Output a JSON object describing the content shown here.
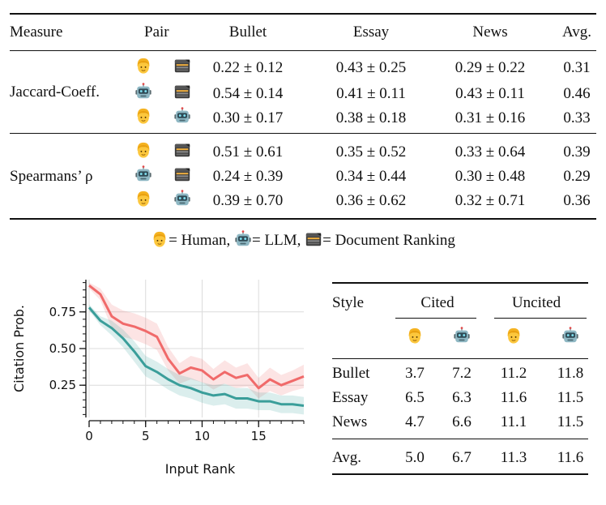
{
  "top_table": {
    "headers": {
      "measure": "Measure",
      "pair": "Pair",
      "bullet": "Bullet",
      "essay": "Essay",
      "news": "News",
      "avg": "Avg."
    },
    "groups": [
      {
        "label": "Jaccard-Coeff.",
        "rows": [
          {
            "pair": [
              "human",
              "doc"
            ],
            "bullet": "0.22 ± 0.12",
            "essay": "0.43 ± 0.25",
            "news": "0.29 ± 0.22",
            "avg": "0.31"
          },
          {
            "pair": [
              "llm",
              "doc"
            ],
            "bullet": "0.54 ± 0.14",
            "essay": "0.41 ± 0.11",
            "news": "0.43 ± 0.11",
            "avg": "0.46"
          },
          {
            "pair": [
              "human",
              "llm"
            ],
            "bullet": "0.30 ± 0.17",
            "essay": "0.38 ± 0.18",
            "news": "0.31 ± 0.16",
            "avg": "0.33"
          }
        ]
      },
      {
        "label": "Spearmans’ ρ",
        "rows": [
          {
            "pair": [
              "human",
              "doc"
            ],
            "bullet": "0.51 ± 0.61",
            "essay": "0.35 ± 0.52",
            "news": "0.33 ± 0.64",
            "avg": "0.39"
          },
          {
            "pair": [
              "llm",
              "doc"
            ],
            "bullet": "0.24 ± 0.39",
            "essay": "0.34 ± 0.44",
            "news": "0.30 ± 0.48",
            "avg": "0.29"
          },
          {
            "pair": [
              "human",
              "llm"
            ],
            "bullet": "0.39 ± 0.70",
            "essay": "0.36 ± 0.62",
            "news": "0.32 ± 0.71",
            "avg": "0.36"
          }
        ]
      }
    ]
  },
  "legend": {
    "human": "= Human,",
    "llm": "= LLM,",
    "doc": "= Document Ranking"
  },
  "chart_data": {
    "type": "line",
    "xlabel": "Input Rank",
    "ylabel": "Citation Prob.",
    "xlim": [
      0,
      19
    ],
    "ylim": [
      0.03,
      0.97
    ],
    "xticks": [
      0,
      5,
      10,
      15
    ],
    "yticks": [
      0.25,
      0.5,
      0.75
    ],
    "ytick_labels": [
      "0.25",
      "0.50",
      "0.75"
    ],
    "grid": true,
    "series": [
      {
        "name": "Human",
        "color": "#f06a6a",
        "x": [
          0,
          1,
          2,
          3,
          4,
          5,
          6,
          7,
          8,
          9,
          10,
          11,
          12,
          13,
          14,
          15,
          16,
          17,
          18,
          19
        ],
        "values": [
          0.93,
          0.87,
          0.72,
          0.67,
          0.65,
          0.62,
          0.58,
          0.43,
          0.33,
          0.37,
          0.35,
          0.29,
          0.34,
          0.3,
          0.32,
          0.23,
          0.29,
          0.25,
          0.28,
          0.31
        ],
        "band_half": [
          0.02,
          0.04,
          0.08,
          0.09,
          0.09,
          0.09,
          0.09,
          0.08,
          0.07,
          0.08,
          0.08,
          0.07,
          0.08,
          0.07,
          0.08,
          0.07,
          0.08,
          0.07,
          0.07,
          0.08
        ]
      },
      {
        "name": "LLM",
        "color": "#3a9e9a",
        "x": [
          0,
          1,
          2,
          3,
          4,
          5,
          6,
          7,
          8,
          9,
          10,
          11,
          12,
          13,
          14,
          15,
          16,
          17,
          18,
          19
        ],
        "values": [
          0.78,
          0.69,
          0.64,
          0.57,
          0.48,
          0.38,
          0.34,
          0.29,
          0.25,
          0.23,
          0.2,
          0.18,
          0.19,
          0.16,
          0.16,
          0.14,
          0.14,
          0.12,
          0.12,
          0.11
        ],
        "band_half": [
          0.02,
          0.03,
          0.05,
          0.06,
          0.07,
          0.07,
          0.07,
          0.07,
          0.07,
          0.07,
          0.07,
          0.07,
          0.07,
          0.07,
          0.07,
          0.06,
          0.06,
          0.06,
          0.06,
          0.06
        ]
      }
    ]
  },
  "right_table": {
    "headers": {
      "style": "Style",
      "cited": "Cited",
      "uncited": "Uncited"
    },
    "subheaders": [
      "human",
      "llm",
      "human",
      "llm"
    ],
    "rows": [
      {
        "style": "Bullet",
        "values": [
          "3.7",
          "7.2",
          "11.2",
          "11.8"
        ]
      },
      {
        "style": "Essay",
        "values": [
          "6.5",
          "6.3",
          "11.6",
          "11.5"
        ]
      },
      {
        "style": "News",
        "values": [
          "4.7",
          "6.6",
          "11.1",
          "11.5"
        ]
      }
    ],
    "avg": {
      "style": "Avg.",
      "values": [
        "5.0",
        "6.7",
        "11.3",
        "11.6"
      ]
    }
  }
}
